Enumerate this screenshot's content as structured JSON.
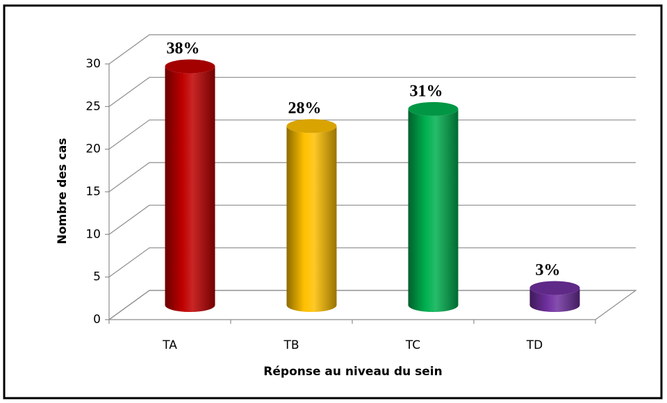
{
  "chart_data": {
    "type": "bar3d",
    "categories": [
      "TA",
      "TB",
      "TC",
      "TD"
    ],
    "values": [
      28,
      21,
      23,
      2
    ],
    "percent_labels": [
      "38%",
      "28%",
      "31%",
      "3%"
    ],
    "colors": [
      "#c00000",
      "#ffc000",
      "#00b050",
      "#7030a0"
    ],
    "xlabel": "Réponse au niveau du sein",
    "ylabel": "Nombre des cas",
    "ylim": [
      0,
      30
    ],
    "yticks": [
      0,
      5,
      10,
      15,
      20,
      25,
      30
    ],
    "grid": true
  }
}
